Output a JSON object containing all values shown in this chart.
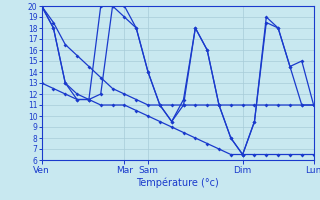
{
  "background_color": "#c8e8f0",
  "grid_color": "#a8ccd8",
  "line_color": "#1a3acc",
  "xlabel": "Température (°c)",
  "ylim": [
    6,
    20
  ],
  "yticks": [
    6,
    7,
    8,
    9,
    10,
    11,
    12,
    13,
    14,
    15,
    16,
    17,
    18,
    19,
    20
  ],
  "day_labels": [
    "Ven",
    "Mar",
    "Sam",
    "Dim",
    "Lun"
  ],
  "day_x": [
    0,
    7,
    9,
    17,
    23
  ],
  "n_points": 24,
  "series": [
    {
      "x": [
        0,
        1,
        2,
        3,
        4,
        5,
        6,
        7,
        8,
        9,
        10,
        11,
        12,
        13,
        14,
        15,
        16,
        17,
        18,
        19,
        20,
        21,
        22,
        23
      ],
      "y": [
        20,
        18.5,
        16.5,
        15.5,
        14.5,
        13.5,
        12.5,
        12,
        11.5,
        11,
        11,
        11,
        11,
        11,
        11,
        11,
        11,
        11,
        11,
        11,
        11,
        11,
        11,
        11
      ]
    },
    {
      "x": [
        0,
        1,
        2,
        3,
        4,
        5,
        6,
        7,
        8,
        9,
        10,
        11,
        12,
        13,
        14,
        15,
        16,
        17,
        18,
        19,
        20,
        21,
        22,
        23
      ],
      "y": [
        20,
        18,
        13,
        11.5,
        11.5,
        20,
        20,
        19,
        18,
        14,
        11,
        9.5,
        11.5,
        18,
        16,
        11,
        8,
        6.5,
        9.5,
        18.5,
        18,
        14.5,
        15,
        11
      ]
    },
    {
      "x": [
        0,
        1,
        2,
        3,
        4,
        5,
        6,
        7,
        8,
        9,
        10,
        11,
        12,
        13,
        14,
        15,
        16,
        17,
        18,
        19,
        20,
        21,
        22,
        23
      ],
      "y": [
        13,
        12.5,
        12,
        11.5,
        11.5,
        11,
        11,
        11,
        10.5,
        10,
        9.5,
        9,
        8.5,
        8,
        7.5,
        7,
        6.5,
        6.5,
        6.5,
        6.5,
        6.5,
        6.5,
        6.5,
        6.5
      ]
    },
    {
      "x": [
        0,
        1,
        2,
        3,
        4,
        5,
        6,
        7,
        8,
        9,
        10,
        11,
        12,
        13,
        14,
        15,
        16,
        17,
        18,
        19,
        20,
        21,
        22,
        23
      ],
      "y": [
        20,
        18,
        13,
        12,
        11.5,
        12,
        20,
        20,
        18,
        14,
        11,
        9.5,
        11,
        18,
        16,
        11,
        8,
        6.5,
        9.5,
        19,
        18,
        14.5,
        11,
        11
      ]
    }
  ]
}
